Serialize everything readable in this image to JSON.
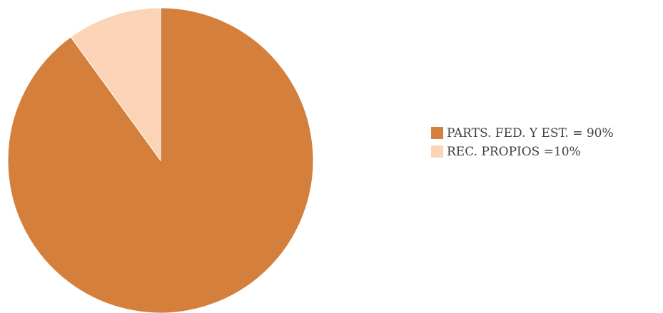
{
  "chart_data": {
    "type": "pie",
    "title": "",
    "start_angle_deg": 0,
    "direction": "clockwise",
    "legend_position": "right",
    "slices": [
      {
        "label": "PARTS. FED. Y EST. = 90%",
        "value": 90,
        "color": "#d4803c"
      },
      {
        "label": "REC. PROPIOS =10%",
        "value": 10,
        "color": "#fbd3b6"
      }
    ]
  }
}
